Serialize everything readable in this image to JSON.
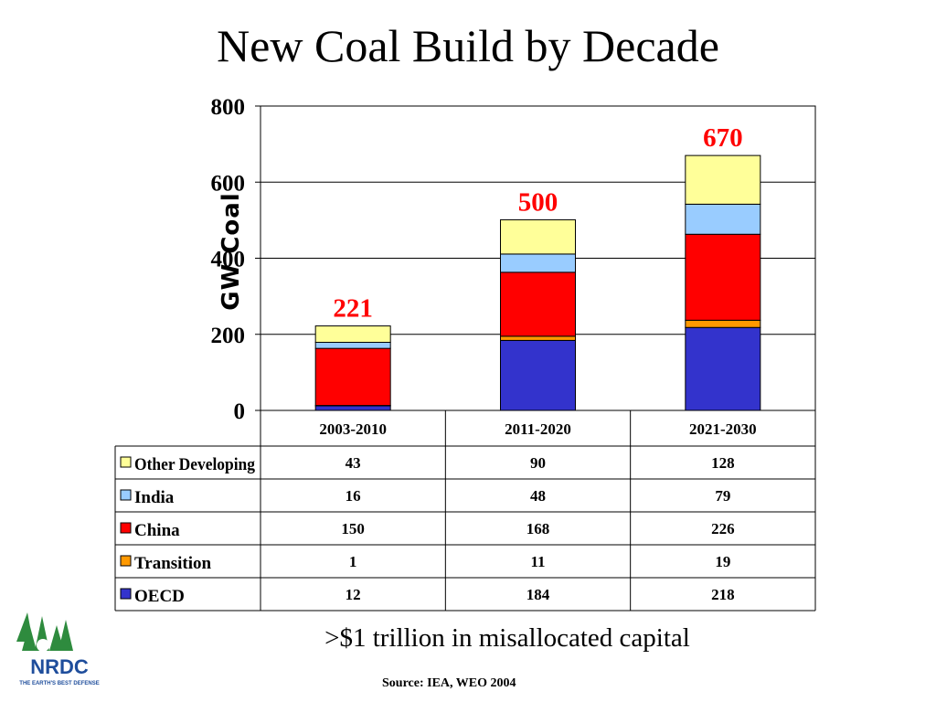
{
  "title": "New Coal Build by Decade",
  "tagline": ">$1 trillion in misallocated capital",
  "source": "Source: IEA, WEO 2004",
  "logo": {
    "name": "NRDC",
    "slogan": "THE EARTH'S BEST DEFENSE"
  },
  "chart_data": {
    "type": "bar",
    "stacked": true,
    "categories": [
      "2003-2010",
      "2011-2020",
      "2021-2030"
    ],
    "series": [
      {
        "name": "OECD",
        "color": "#3333CC",
        "values": [
          12,
          184,
          218
        ]
      },
      {
        "name": "Transition",
        "color": "#FF9900",
        "values": [
          1,
          11,
          19
        ]
      },
      {
        "name": "China",
        "color": "#FF0000",
        "values": [
          150,
          168,
          226
        ]
      },
      {
        "name": "India",
        "color": "#99CCFF",
        "values": [
          16,
          48,
          79
        ]
      },
      {
        "name": "Other Developing",
        "color": "#FFFF99",
        "values": [
          43,
          90,
          128
        ]
      }
    ],
    "totals": [
      "221",
      "500",
      "670"
    ],
    "total_color": "#FF0000",
    "ylabel": "GW Coal",
    "ylim": [
      0,
      800
    ],
    "yticks": [
      "0",
      "200",
      "400",
      "600",
      "800"
    ],
    "grid": true,
    "data_table": true
  }
}
